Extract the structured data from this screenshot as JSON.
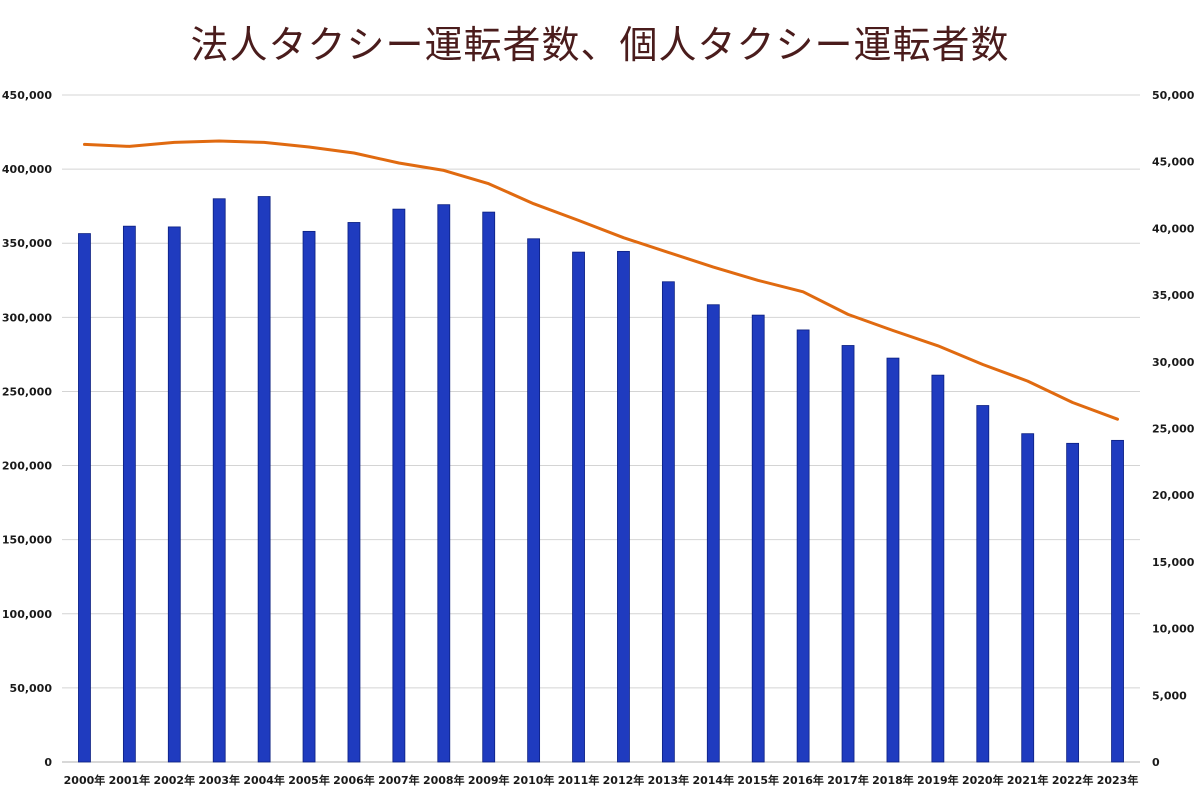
{
  "chart_data": {
    "type": "bar",
    "title": "法人タクシー運転者数、個人タクシー運転者数",
    "categories": [
      "2000年",
      "2001年",
      "2002年",
      "2003年",
      "2004年",
      "2005年",
      "2006年",
      "2007年",
      "2008年",
      "2009年",
      "2010年",
      "2011年",
      "2012年",
      "2013年",
      "2014年",
      "2015年",
      "2016年",
      "2017年",
      "2018年",
      "2019年",
      "2020年",
      "2021年",
      "2022年",
      "2023年"
    ],
    "series": [
      {
        "type": "bar",
        "axis": "left",
        "color": "#1f3bbf",
        "values": [
          356500,
          361500,
          361000,
          380000,
          381500,
          358000,
          364000,
          373000,
          376000,
          371000,
          353000,
          344000,
          344500,
          324000,
          308500,
          301500,
          291500,
          281000,
          272500,
          261000,
          240500,
          221500,
          215000,
          217000
        ]
      },
      {
        "type": "line",
        "axis": "right",
        "color": "#e06a10",
        "values": [
          46300,
          46150,
          46450,
          46550,
          46450,
          46100,
          45650,
          44900,
          44350,
          43350,
          41850,
          40600,
          39300,
          38200,
          37100,
          36100,
          35250,
          33550,
          32350,
          31200,
          29800,
          28550,
          26950,
          25700
        ]
      }
    ],
    "ylim_left": [
      0,
      450000
    ],
    "ylim_right": [
      0,
      50000
    ],
    "yticks_left": [
      "0",
      "50,000",
      "100,000",
      "150,000",
      "200,000",
      "250,000",
      "300,000",
      "350,000",
      "400,000",
      "450,000"
    ],
    "yticks_right": [
      "0",
      "5,000",
      "10,000",
      "15,000",
      "20,000",
      "25,000",
      "30,000",
      "35,000",
      "40,000",
      "45,000",
      "50,000"
    ],
    "grid": true,
    "legend": "none"
  }
}
